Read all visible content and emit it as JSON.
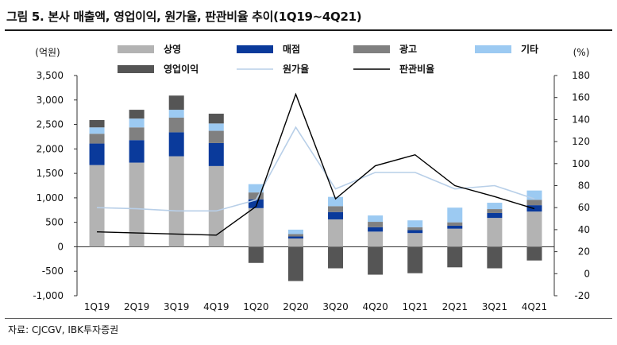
{
  "title": "그림 5. 본사 매출액, 영업이익, 원가율, 판관비율 추이(1Q19~4Q21)",
  "source": "자료: CJCGV, IBK투자증권",
  "colors": {
    "store": "#b3b3b3",
    "concession": "#0a3a9b",
    "ad": "#808080",
    "other": "#9ccaf2",
    "op": "#555555",
    "cost_ratio": "#b8cfe8",
    "sga_ratio": "#000000"
  },
  "chart_data": {
    "type": "bar",
    "stacked": true,
    "categories": [
      "1Q19",
      "2Q19",
      "3Q19",
      "4Q19",
      "1Q20",
      "2Q20",
      "3Q20",
      "4Q20",
      "1Q21",
      "2Q21",
      "3Q21",
      "4Q21"
    ],
    "y_left": {
      "label": "(억원)",
      "ylim": [
        -1000,
        3500
      ],
      "ticks": [
        "-1,000",
        "-500",
        "0",
        "500",
        "1,000",
        "1,500",
        "2,000",
        "2,500",
        "3,000",
        "3,500"
      ]
    },
    "y_right": {
      "label": "(%)",
      "ylim": [
        -20,
        180
      ],
      "ticks": [
        "-20",
        "0",
        "20",
        "40",
        "60",
        "80",
        "100",
        "120",
        "140",
        "160",
        "180"
      ]
    },
    "series": [
      {
        "name": "상영",
        "type": "bar",
        "color_key": "store",
        "values": [
          1670,
          1720,
          1850,
          1650,
          790,
          170,
          560,
          310,
          280,
          370,
          590,
          720
        ]
      },
      {
        "name": "매점",
        "type": "bar",
        "color_key": "concession",
        "values": [
          440,
          460,
          490,
          470,
          180,
          40,
          150,
          90,
          60,
          60,
          100,
          130
        ]
      },
      {
        "name": "광고",
        "type": "bar",
        "color_key": "ad",
        "values": [
          200,
          260,
          300,
          250,
          140,
          50,
          120,
          110,
          60,
          70,
          80,
          110
        ]
      },
      {
        "name": "기타",
        "type": "bar",
        "color_key": "other",
        "values": [
          130,
          180,
          160,
          150,
          170,
          90,
          190,
          130,
          140,
          300,
          130,
          190
        ]
      },
      {
        "name": "영업이익",
        "type": "bar",
        "color_key": "op",
        "values": [
          150,
          180,
          290,
          200,
          -330,
          -700,
          -440,
          -570,
          -540,
          -420,
          -440,
          -280
        ]
      },
      {
        "name": "원가율",
        "type": "line",
        "axis": "right",
        "color_key": "cost_ratio",
        "values": [
          60,
          59,
          57,
          57,
          67,
          133,
          77,
          92,
          92,
          77,
          80,
          68
        ]
      },
      {
        "name": "판관비율",
        "type": "line",
        "axis": "right",
        "color_key": "sga_ratio",
        "values": [
          38,
          37,
          36,
          35,
          61,
          163,
          68,
          98,
          108,
          80,
          70,
          59
        ]
      }
    ],
    "legend": "top"
  }
}
